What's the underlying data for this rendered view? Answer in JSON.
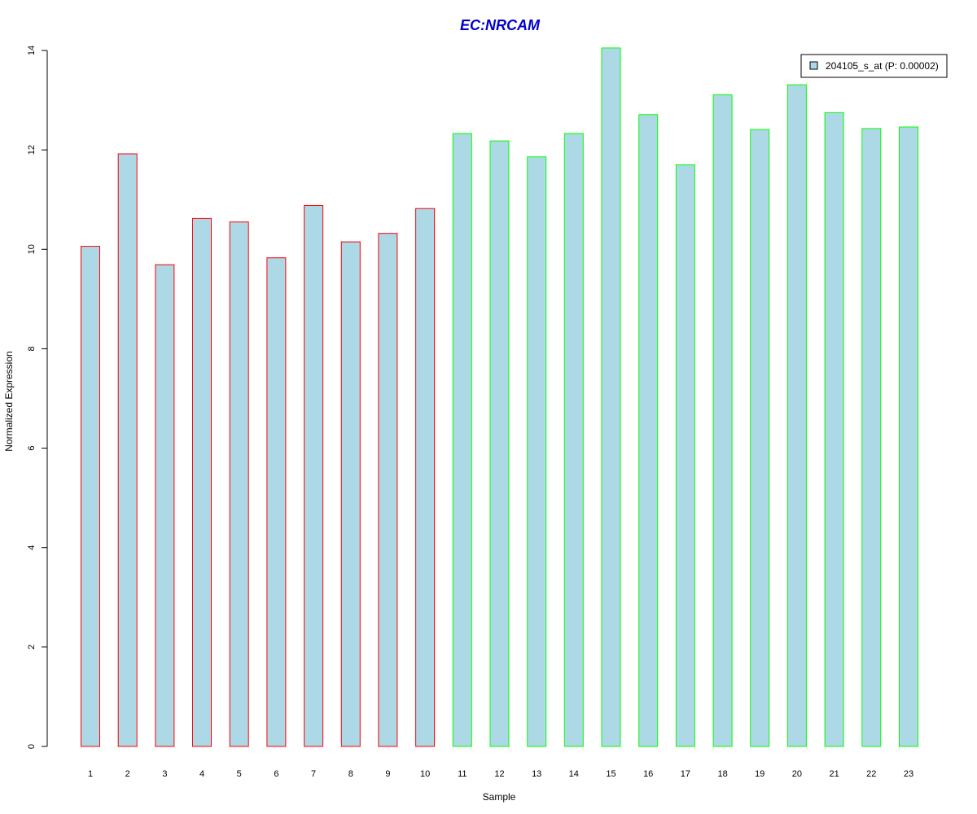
{
  "chart_data": {
    "type": "bar",
    "title": "EC:NRCAM",
    "xlabel": "Sample",
    "ylabel": "Normalized Expression",
    "ylim": [
      0,
      14
    ],
    "yticks": [
      0,
      2,
      4,
      6,
      8,
      10,
      12,
      14
    ],
    "categories": [
      "1",
      "2",
      "3",
      "4",
      "5",
      "6",
      "7",
      "8",
      "9",
      "10",
      "11",
      "12",
      "13",
      "14",
      "15",
      "16",
      "17",
      "18",
      "19",
      "20",
      "21",
      "22",
      "23"
    ],
    "series": [
      {
        "name": "204105_s_at (P: 0.00002)",
        "values": [
          10.06,
          11.92,
          9.69,
          10.62,
          10.55,
          9.83,
          10.88,
          10.15,
          10.32,
          10.82,
          12.33,
          12.18,
          11.86,
          12.33,
          14.05,
          12.71,
          11.7,
          13.11,
          12.41,
          13.31,
          12.75,
          12.43,
          12.46
        ]
      }
    ],
    "bar_fill": "#add8e6",
    "outline_colors": [
      "#ff0000",
      "#ff0000",
      "#ff0000",
      "#ff0000",
      "#ff0000",
      "#ff0000",
      "#ff0000",
      "#ff0000",
      "#ff0000",
      "#ff0000",
      "#00ff00",
      "#00ff00",
      "#00ff00",
      "#00ff00",
      "#00ff00",
      "#00ff00",
      "#00ff00",
      "#00ff00",
      "#00ff00",
      "#00ff00",
      "#00ff00",
      "#00ff00",
      "#00ff00"
    ],
    "title_color": "#0000cc",
    "legend_position": "top-right",
    "grid": false
  }
}
